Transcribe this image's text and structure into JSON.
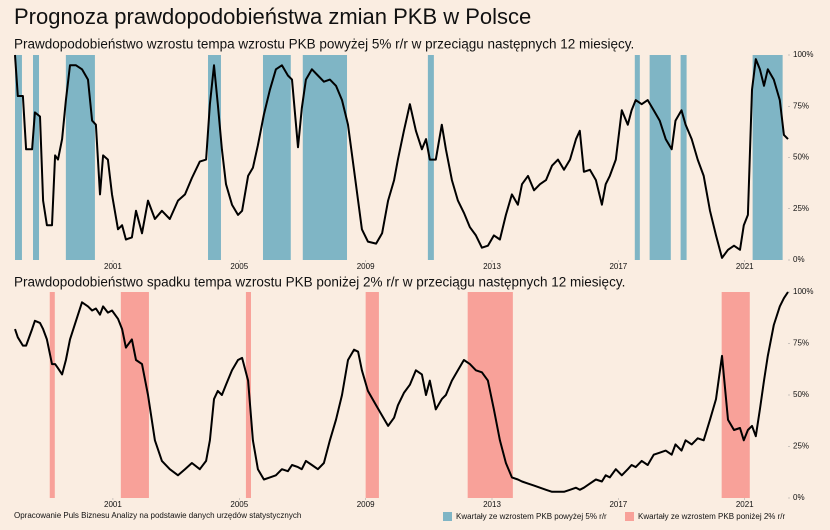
{
  "title": "Prognoza prawdopodobieństwa zmian PKB w Polsce",
  "source": "Opracowanie Puls Biznesu Analizy na podstawie danych urzędów statystycznych",
  "chart_data": [
    {
      "type": "line",
      "title": "Prawdopodobieństwo wzrostu tempa wzrostu PKB powyżej 5% r/r w przeciągu następnych 12 miesięcy.",
      "x": [
        1997.9,
        1997.99,
        1998.15,
        1998.25,
        1998.44,
        1998.53,
        1998.69,
        1998.79,
        1998.91,
        1999.07,
        1999.17,
        1999.26,
        1999.39,
        1999.51,
        1999.64,
        1999.83,
        2000.02,
        2000.21,
        2000.34,
        2000.46,
        2000.59,
        2000.69,
        2000.84,
        2000.97,
        2001.16,
        2001.29,
        2001.41,
        2001.6,
        2001.73,
        2001.92,
        2002.11,
        2002.33,
        2002.55,
        2002.8,
        2003.06,
        2003.28,
        2003.5,
        2003.75,
        2003.95,
        2004.07,
        2004.2,
        2004.32,
        2004.45,
        2004.58,
        2004.77,
        2004.96,
        2005.09,
        2005.28,
        2005.43,
        2005.59,
        2005.78,
        2005.97,
        2006.16,
        2006.35,
        2006.54,
        2006.67,
        2006.86,
        2006.98,
        2007.11,
        2007.3,
        2007.49,
        2007.68,
        2007.87,
        2008.06,
        2008.25,
        2008.44,
        2008.63,
        2008.76,
        2008.88,
        2009.07,
        2009.33,
        2009.52,
        2009.71,
        2009.9,
        2010.02,
        2010.21,
        2010.4,
        2010.59,
        2010.78,
        2010.91,
        2011.03,
        2011.22,
        2011.41,
        2011.54,
        2011.73,
        2011.92,
        2012.11,
        2012.3,
        2012.49,
        2012.68,
        2012.87,
        2013.06,
        2013.25,
        2013.44,
        2013.63,
        2013.82,
        2013.95,
        2014.14,
        2014.33,
        2014.52,
        2014.71,
        2014.9,
        2015.09,
        2015.28,
        2015.47,
        2015.66,
        2015.78,
        2015.91,
        2016.1,
        2016.29,
        2016.48,
        2016.6,
        2016.73,
        2016.92,
        2017.11,
        2017.3,
        2017.42,
        2017.55,
        2017.74,
        2017.93,
        2018.12,
        2018.31,
        2018.5,
        2018.69,
        2018.81,
        2019.0,
        2019.13,
        2019.32,
        2019.51,
        2019.7,
        2019.9,
        2020.09,
        2020.28,
        2020.47,
        2020.66,
        2020.85,
        2020.97,
        2021.1,
        2021.23,
        2021.35,
        2021.48,
        2021.61,
        2021.73,
        2021.92,
        2022.11,
        2022.24,
        2022.37
      ],
      "series": [
        {
          "color": "#000000",
          "values": [
            100,
            80,
            80,
            54,
            54,
            72,
            70,
            29,
            17,
            17,
            51,
            49,
            59,
            78,
            95,
            95,
            93,
            88,
            68,
            66,
            32,
            51,
            49,
            32,
            15,
            17,
            10,
            11,
            24,
            13,
            29,
            20,
            24,
            20,
            29,
            32,
            40,
            48,
            49,
            76,
            95,
            76,
            54,
            37,
            27,
            22,
            24,
            41,
            45,
            56,
            71,
            83,
            93,
            95,
            90,
            88,
            55,
            74,
            88,
            93,
            90,
            87,
            88,
            85,
            78,
            66,
            44,
            29,
            15,
            9,
            8,
            13,
            29,
            39,
            49,
            63,
            76,
            63,
            54,
            59,
            49,
            49,
            66,
            54,
            39,
            29,
            23,
            16,
            12,
            6,
            7,
            12,
            10,
            22,
            32,
            27,
            37,
            41,
            34,
            37,
            39,
            46,
            49,
            44,
            49,
            59,
            63,
            43,
            44,
            39,
            27,
            37,
            41,
            49,
            73,
            66,
            73,
            78,
            76,
            78,
            73,
            68,
            59,
            54,
            68,
            73,
            66,
            59,
            49,
            41,
            24,
            12,
            1,
            5,
            7,
            5,
            17,
            22,
            83,
            98,
            93,
            85,
            93,
            88,
            78,
            61,
            59
          ]
        }
      ],
      "shaded": {
        "name": "Kwartały ze wzrostem PKB powyżej 5% r/r",
        "color": "#7fb5c5",
        "ranges": [
          [
            1997.9,
            1998.12
          ],
          [
            1998.47,
            1998.66
          ],
          [
            1999.51,
            2000.43
          ],
          [
            2004.01,
            2004.42
          ],
          [
            2005.75,
            2006.63
          ],
          [
            2007.01,
            2008.41
          ],
          [
            2010.97,
            2011.16
          ],
          [
            2017.52,
            2017.68
          ],
          [
            2017.99,
            2018.66
          ],
          [
            2018.97,
            2019.16
          ],
          [
            2021.25,
            2022.2
          ]
        ]
      },
      "xlim": [
        1997.9,
        2022.37
      ],
      "ylim": [
        0,
        100
      ],
      "xticks": [
        2001,
        2005,
        2009,
        2013,
        2017,
        2021
      ],
      "yticks": [
        {
          "value": 0,
          "label": "0%"
        },
        {
          "value": 25,
          "label": "25%"
        },
        {
          "value": 50,
          "label": "50%"
        },
        {
          "value": 75,
          "label": "75%"
        },
        {
          "value": 100,
          "label": "100%"
        }
      ]
    },
    {
      "type": "line",
      "title": "Prawdopodobieństwo spadku tempa wzrostu PKB poniżej 2% r/r w przeciągu następnych 12 miesięcy.",
      "x": [
        1997.9,
        1997.99,
        1998.15,
        1998.25,
        1998.44,
        1998.53,
        1998.69,
        1998.79,
        1998.91,
        1999.07,
        1999.17,
        1999.26,
        1999.39,
        1999.51,
        1999.64,
        1999.83,
        2000.02,
        2000.21,
        2000.34,
        2000.46,
        2000.59,
        2000.69,
        2000.84,
        2000.97,
        2001.16,
        2001.29,
        2001.41,
        2001.6,
        2001.73,
        2001.92,
        2002.11,
        2002.33,
        2002.55,
        2002.8,
        2003.06,
        2003.28,
        2003.5,
        2003.75,
        2003.95,
        2004.07,
        2004.2,
        2004.32,
        2004.45,
        2004.58,
        2004.77,
        2004.96,
        2005.09,
        2005.28,
        2005.43,
        2005.59,
        2005.78,
        2005.97,
        2006.16,
        2006.35,
        2006.54,
        2006.67,
        2006.86,
        2006.98,
        2007.11,
        2007.3,
        2007.49,
        2007.68,
        2007.87,
        2008.06,
        2008.25,
        2008.44,
        2008.63,
        2008.76,
        2008.88,
        2009.07,
        2009.33,
        2009.52,
        2009.71,
        2009.9,
        2010.02,
        2010.21,
        2010.4,
        2010.59,
        2010.78,
        2010.91,
        2011.03,
        2011.22,
        2011.41,
        2011.54,
        2011.73,
        2011.92,
        2012.11,
        2012.3,
        2012.49,
        2012.68,
        2012.87,
        2013.06,
        2013.25,
        2013.44,
        2013.63,
        2013.82,
        2013.95,
        2014.14,
        2014.33,
        2014.52,
        2014.71,
        2014.9,
        2015.09,
        2015.28,
        2015.47,
        2015.66,
        2015.78,
        2015.91,
        2016.1,
        2016.29,
        2016.48,
        2016.6,
        2016.73,
        2016.92,
        2017.11,
        2017.3,
        2017.42,
        2017.55,
        2017.74,
        2017.93,
        2018.12,
        2018.31,
        2018.5,
        2018.69,
        2018.81,
        2019.0,
        2019.13,
        2019.32,
        2019.51,
        2019.7,
        2019.9,
        2020.09,
        2020.28,
        2020.47,
        2020.66,
        2020.85,
        2020.97,
        2021.1,
        2021.23,
        2021.35,
        2021.48,
        2021.61,
        2021.73,
        2021.92,
        2022.11,
        2022.24,
        2022.37
      ],
      "series": [
        {
          "color": "#000000",
          "values": [
            82,
            78,
            74,
            74,
            82,
            86,
            85,
            82,
            77,
            65,
            65,
            63,
            60,
            67,
            77,
            86,
            95,
            93,
            91,
            92,
            89,
            93,
            90,
            91,
            87,
            82,
            73,
            77,
            67,
            65,
            50,
            28,
            18,
            14,
            11,
            14,
            17,
            14,
            18,
            28,
            48,
            52,
            50,
            55,
            62,
            67,
            68,
            57,
            28,
            14,
            9,
            10,
            11,
            14,
            13,
            16,
            15,
            14,
            18,
            16,
            14,
            17,
            28,
            38,
            50,
            67,
            72,
            71,
            62,
            52,
            45,
            40,
            35,
            39,
            45,
            51,
            55,
            62,
            60,
            50,
            57,
            43,
            48,
            50,
            57,
            62,
            67,
            65,
            62,
            61,
            57,
            43,
            28,
            17,
            10,
            9,
            8,
            7,
            6,
            5,
            4,
            3,
            3,
            3,
            4,
            5,
            4,
            5,
            7,
            9,
            8,
            11,
            10,
            14,
            11,
            14,
            16,
            15,
            18,
            16,
            21,
            22,
            23,
            21,
            26,
            23,
            28,
            26,
            29,
            28,
            38,
            48,
            69,
            38,
            33,
            34,
            28,
            33,
            35,
            30,
            43,
            57,
            69,
            84,
            93,
            97,
            100
          ]
        }
      ],
      "shaded": {
        "name": "Kwartały ze wzrostem PKB poniżej 2% r/r",
        "color": "#f8a199",
        "ranges": [
          [
            1999.0,
            1999.16
          ],
          [
            2001.25,
            2002.14
          ],
          [
            2005.21,
            2005.37
          ],
          [
            2009.0,
            2009.42
          ],
          [
            2012.23,
            2013.66
          ],
          [
            2020.27,
            2021.16
          ]
        ]
      },
      "xlim": [
        1997.9,
        2022.37
      ],
      "ylim": [
        0,
        100
      ],
      "xticks": [
        2001,
        2005,
        2009,
        2013,
        2017,
        2021
      ],
      "yticks": [
        {
          "value": 0,
          "label": "0%"
        },
        {
          "value": 25,
          "label": "25%"
        },
        {
          "value": 50,
          "label": "50%"
        },
        {
          "value": 75,
          "label": "75%"
        },
        {
          "value": 100,
          "label": "100%"
        }
      ]
    }
  ]
}
